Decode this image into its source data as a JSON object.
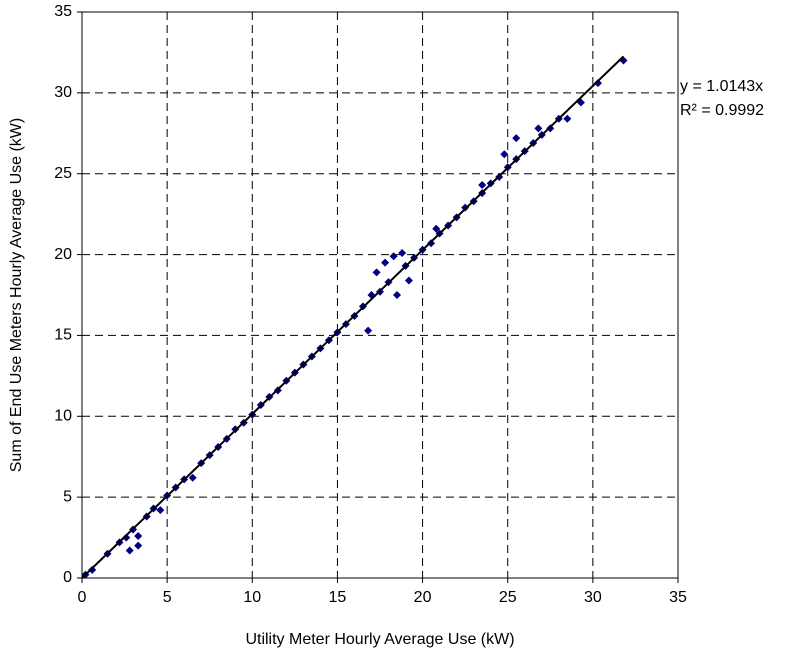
{
  "chart_data": {
    "type": "scatter",
    "x_label": "Utility Meter Hourly Average Use (kW)",
    "y_label": "Sum of End Use Meters Hourly Average Use (kW)",
    "xlim": [
      0,
      35
    ],
    "ylim": [
      0,
      35
    ],
    "xticks": [
      0,
      5,
      10,
      15,
      20,
      25,
      30,
      35
    ],
    "yticks": [
      0,
      5,
      10,
      15,
      20,
      25,
      30,
      35
    ],
    "grid": true,
    "series": [
      {
        "color": "#000080",
        "x": [
          0.2,
          0.6,
          1.5,
          2.2,
          2.6,
          2.8,
          3.0,
          3.3,
          3.3,
          3.8,
          4.2,
          4.6,
          5.0,
          5.5,
          6.0,
          6.5,
          7.0,
          7.5,
          8.0,
          8.5,
          9.0,
          9.5,
          10.0,
          10.5,
          11.0,
          11.5,
          12.0,
          12.5,
          13.0,
          13.5,
          14.0,
          14.5,
          15.0,
          15.5,
          16.0,
          16.5,
          16.8,
          17.0,
          17.3,
          17.5,
          17.8,
          18.0,
          18.3,
          18.5,
          18.8,
          19.0,
          19.2,
          19.5,
          20.0,
          20.5,
          20.8,
          21.0,
          21.5,
          22.0,
          22.5,
          23.0,
          23.5,
          23.5,
          24.0,
          24.5,
          24.8,
          25.0,
          25.5,
          25.5,
          26.0,
          26.5,
          26.8,
          27.0,
          27.5,
          28.0,
          28.5,
          29.3,
          30.3,
          31.8
        ],
        "values": [
          0.2,
          0.5,
          1.5,
          2.2,
          2.5,
          1.7,
          3.0,
          2.0,
          2.6,
          3.8,
          4.3,
          4.2,
          5.1,
          5.6,
          6.1,
          6.2,
          7.1,
          7.6,
          8.1,
          8.6,
          9.2,
          9.6,
          10.1,
          10.7,
          11.2,
          11.6,
          12.2,
          12.7,
          13.2,
          13.7,
          14.2,
          14.7,
          15.2,
          15.7,
          16.2,
          16.8,
          15.3,
          17.5,
          18.9,
          17.7,
          19.5,
          18.3,
          19.9,
          17.5,
          20.1,
          19.3,
          18.4,
          19.8,
          20.3,
          20.7,
          21.6,
          21.3,
          21.8,
          22.3,
          22.9,
          23.3,
          24.3,
          23.8,
          24.4,
          24.8,
          26.2,
          25.4,
          27.2,
          25.9,
          26.4,
          26.9,
          27.8,
          27.4,
          27.8,
          28.4,
          28.4,
          29.4,
          30.6,
          32.0
        ]
      }
    ],
    "trendline": {
      "slope": 1.0143,
      "color": "#000000",
      "equation": "y = 1.0143x",
      "r2_label": "R² = 0.9992"
    }
  }
}
